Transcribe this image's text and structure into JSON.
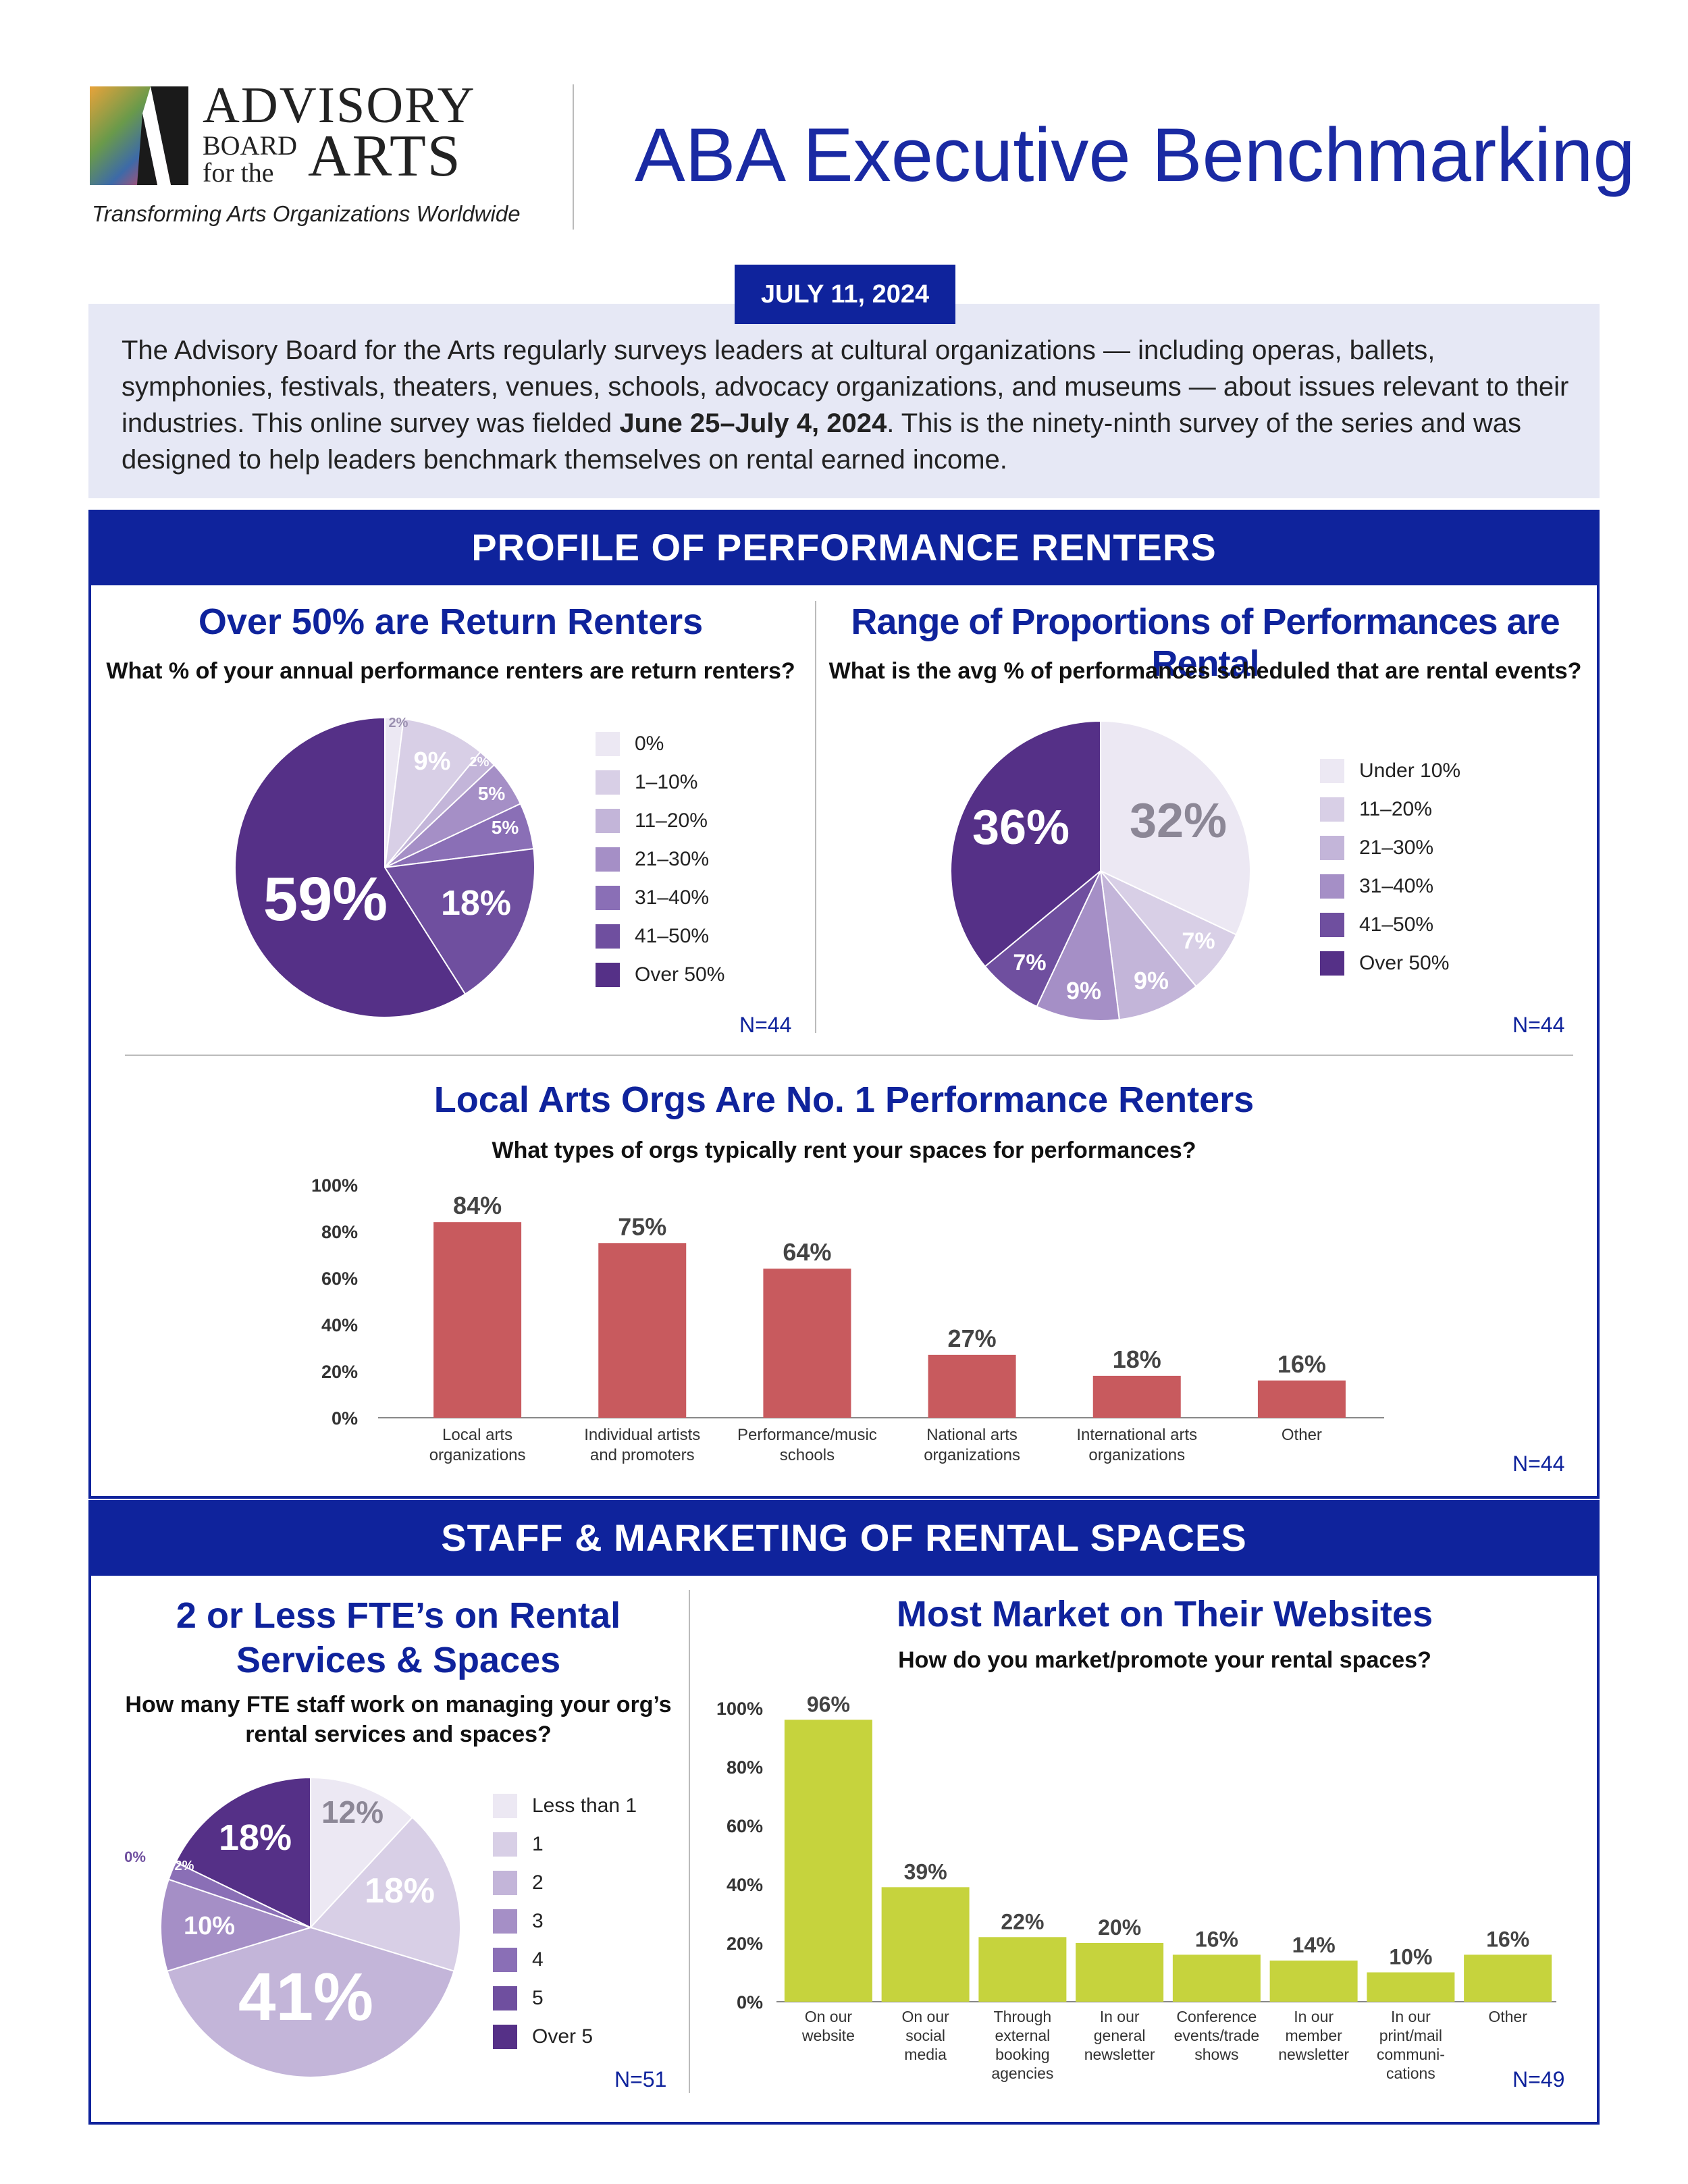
{
  "header": {
    "logo_line1": "ADVISORY",
    "logo_line2": "BOARD",
    "logo_line3": "for the",
    "logo_line4": "ARTS",
    "tagline": "Transforming Arts Organizations Worldwide",
    "title": "ABA Executive Benchmarking"
  },
  "date": "JULY 11, 2024",
  "intro": {
    "text_before": "The Advisory Board for the Arts regularly surveys leaders at cultural organizations — including operas, ballets, symphonies, festivals, theaters, venues, schools, advocacy organizations, and museums — about issues relevant to their industries. This online survey was fielded ",
    "bold": "June 25–July 4, 2024",
    "text_after": ". This is the ninety-ninth survey of the series and was designed to help leaders benchmark themselves on rental earned income."
  },
  "sections": {
    "profile_title": "PROFILE OF PERFORMANCE RENTERS",
    "staff_title": "STAFF & MARKETING OF RENTAL SPACES"
  },
  "colors": {
    "navy": "#0f239c",
    "bar_red": "#c85a5e",
    "bar_green": "#c6d33d",
    "purple_scale": [
      "#ece8f3",
      "#d8cfe6",
      "#c3b5d9",
      "#a58fc6",
      "#8a6fb6",
      "#6f4f9f",
      "#553087"
    ]
  },
  "chart_data": [
    {
      "id": "return-renters",
      "type": "pie",
      "title": "Over 50% are Return Renters",
      "subtitle": "What % of your annual performance renters are return renters?",
      "labels": [
        "0%",
        "1–10%",
        "11–20%",
        "21–30%",
        "31–40%",
        "41–50%",
        "Over 50%"
      ],
      "values": [
        2,
        9,
        2,
        5,
        5,
        18,
        59
      ],
      "value_labels": [
        "2%",
        "9%",
        "2%",
        "5%",
        "5%",
        "18%",
        "59%"
      ],
      "n": "N=44"
    },
    {
      "id": "rental-proportion",
      "type": "pie",
      "title": "Range of Proportions of Performances are Rental",
      "subtitle": "What is the avg % of performances scheduled that are rental events?",
      "labels": [
        "Under 10%",
        "11–20%",
        "21–30%",
        "31–40%",
        "41–50%",
        "Over 50%"
      ],
      "values": [
        32,
        7,
        9,
        9,
        7,
        36
      ],
      "value_labels": [
        "32%",
        "7%",
        "9%",
        "9%",
        "7%",
        "36%"
      ],
      "n": "N=44"
    },
    {
      "id": "renter-types",
      "type": "bar",
      "title": "Local Arts Orgs Are No. 1 Performance Renters",
      "subtitle": "What types of orgs typically rent your spaces for performances?",
      "categories": [
        [
          "Local arts",
          "organizations"
        ],
        [
          "Individual artists",
          "and promoters"
        ],
        [
          "Performance/music",
          "schools"
        ],
        [
          "National arts",
          "organizations"
        ],
        [
          "International arts",
          "organizations"
        ],
        [
          "Other"
        ]
      ],
      "values": [
        84,
        75,
        64,
        27,
        18,
        16
      ],
      "value_labels": [
        "84%",
        "75%",
        "64%",
        "27%",
        "18%",
        "16%"
      ],
      "yticks": [
        "0%",
        "20%",
        "40%",
        "60%",
        "80%",
        "100%"
      ],
      "ylim": [
        0,
        100
      ],
      "n": "N=44"
    },
    {
      "id": "fte-staff",
      "type": "pie",
      "title_line1": "2 or Less FTE’s on Rental",
      "title_line2": "Services & Spaces",
      "subtitle_line1": "How many FTE staff work on managing your org’s",
      "subtitle_line2": "rental services and spaces?",
      "labels": [
        "Less than 1",
        "1",
        "2",
        "3",
        "4",
        "5",
        "Over 5"
      ],
      "values": [
        12,
        18,
        41,
        10,
        2,
        0,
        18
      ],
      "value_labels": [
        "12%",
        "18%",
        "41%",
        "10%",
        "2%",
        "0%",
        "18%"
      ],
      "n": "N=51"
    },
    {
      "id": "marketing-channels",
      "type": "bar",
      "title": "Most Market on Their Websites",
      "subtitle": "How do you market/promote your rental spaces?",
      "categories": [
        [
          "On our",
          "website"
        ],
        [
          "On our",
          "social",
          "media"
        ],
        [
          "Through",
          "external",
          "booking",
          "agencies"
        ],
        [
          "In our",
          "general",
          "newsletter"
        ],
        [
          "Conference",
          "events/trade",
          "shows"
        ],
        [
          "In our",
          "member",
          "newsletter"
        ],
        [
          "In our",
          "print/mail",
          "communi-",
          "cations"
        ],
        [
          "Other"
        ]
      ],
      "values": [
        96,
        39,
        22,
        20,
        16,
        14,
        10,
        16
      ],
      "value_labels": [
        "96%",
        "39%",
        "22%",
        "20%",
        "16%",
        "14%",
        "10%",
        "16%"
      ],
      "yticks": [
        "0%",
        "20%",
        "40%",
        "60%",
        "80%",
        "100%"
      ],
      "ylim": [
        0,
        100
      ],
      "n": "N=49"
    }
  ]
}
